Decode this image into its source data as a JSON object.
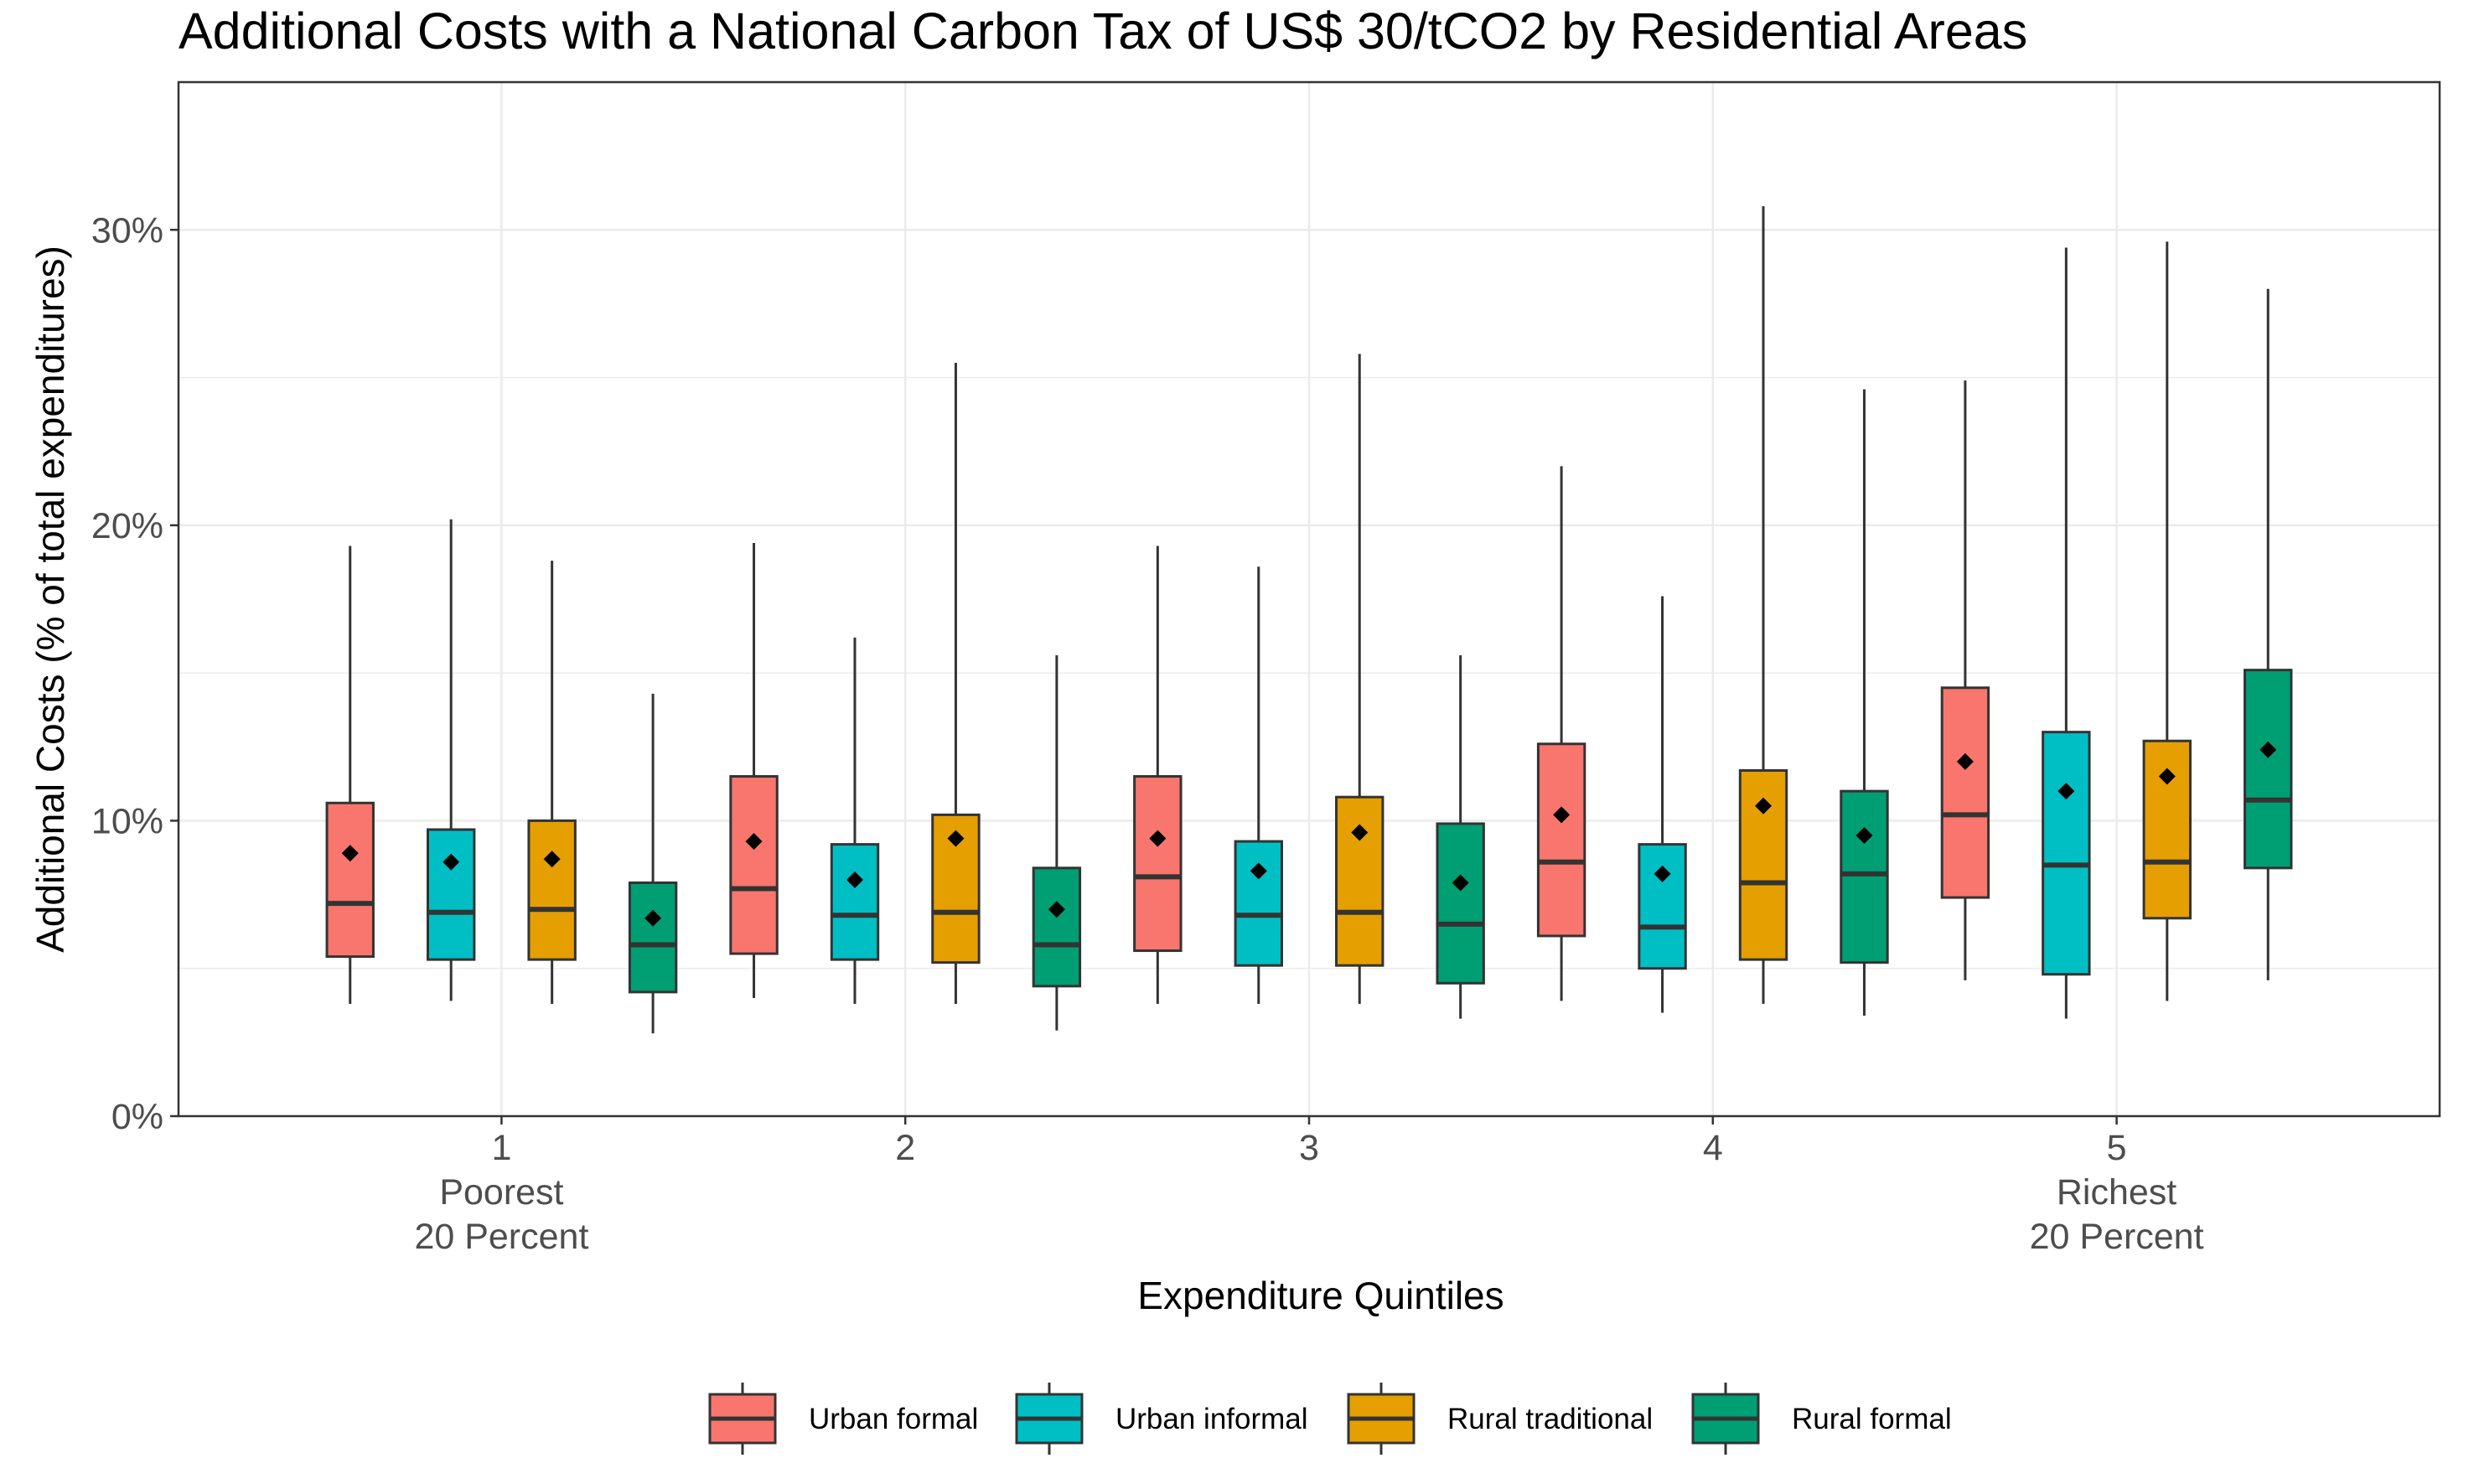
{
  "chart_data": {
    "type": "box",
    "title": "Additional Costs with a National Carbon Tax of US$ 30/tCO2 by Residential Areas",
    "xlabel": "Expenditure Quintiles",
    "ylabel": "Additional Costs (% of total expenditures)",
    "ylim": [
      0,
      35
    ],
    "yticks": [
      0,
      10,
      20,
      30
    ],
    "ytick_labels": [
      "0%",
      "10%",
      "20%",
      "30%"
    ],
    "grid": true,
    "legend_position": "bottom",
    "categories": [
      {
        "label": "1",
        "sublabel1": "Poorest",
        "sublabel2": "20 Percent"
      },
      {
        "label": "2",
        "sublabel1": "",
        "sublabel2": ""
      },
      {
        "label": "3",
        "sublabel1": "",
        "sublabel2": ""
      },
      {
        "label": "4",
        "sublabel1": "",
        "sublabel2": ""
      },
      {
        "label": "5",
        "sublabel1": "Richest",
        "sublabel2": "20 Percent"
      }
    ],
    "series": [
      {
        "name": "Urban formal",
        "color": "#F8766D",
        "boxes": [
          {
            "min": 3.8,
            "q1": 5.4,
            "median": 7.2,
            "q3": 10.6,
            "max": 19.3,
            "mean": 8.9
          },
          {
            "min": 4.0,
            "q1": 5.5,
            "median": 7.7,
            "q3": 11.5,
            "max": 19.4,
            "mean": 9.3
          },
          {
            "min": 3.8,
            "q1": 5.6,
            "median": 8.1,
            "q3": 11.5,
            "max": 19.3,
            "mean": 9.4
          },
          {
            "min": 3.9,
            "q1": 6.1,
            "median": 8.6,
            "q3": 12.6,
            "max": 22.0,
            "mean": 10.2
          },
          {
            "min": 4.6,
            "q1": 7.4,
            "median": 10.2,
            "q3": 14.5,
            "max": 24.9,
            "mean": 12.0
          }
        ]
      },
      {
        "name": "Urban informal",
        "color": "#00BFC4",
        "boxes": [
          {
            "min": 3.9,
            "q1": 5.3,
            "median": 6.9,
            "q3": 9.7,
            "max": 20.2,
            "mean": 8.6
          },
          {
            "min": 3.8,
            "q1": 5.3,
            "median": 6.8,
            "q3": 9.2,
            "max": 16.2,
            "mean": 8.0
          },
          {
            "min": 3.8,
            "q1": 5.1,
            "median": 6.8,
            "q3": 9.3,
            "max": 18.6,
            "mean": 8.3
          },
          {
            "min": 3.5,
            "q1": 5.0,
            "median": 6.4,
            "q3": 9.2,
            "max": 17.6,
            "mean": 8.2
          },
          {
            "min": 3.3,
            "q1": 4.8,
            "median": 8.5,
            "q3": 13.0,
            "max": 29.4,
            "mean": 11.0
          }
        ]
      },
      {
        "name": "Rural traditional",
        "color": "#E69F00",
        "boxes": [
          {
            "min": 3.8,
            "q1": 5.3,
            "median": 7.0,
            "q3": 10.0,
            "max": 18.8,
            "mean": 8.7
          },
          {
            "min": 3.8,
            "q1": 5.2,
            "median": 6.9,
            "q3": 10.2,
            "max": 25.5,
            "mean": 9.4
          },
          {
            "min": 3.8,
            "q1": 5.1,
            "median": 6.9,
            "q3": 10.8,
            "max": 25.8,
            "mean": 9.6
          },
          {
            "min": 3.8,
            "q1": 5.3,
            "median": 7.9,
            "q3": 11.7,
            "max": 30.8,
            "mean": 10.5
          },
          {
            "min": 3.9,
            "q1": 6.7,
            "median": 8.6,
            "q3": 12.7,
            "max": 29.6,
            "mean": 11.5
          }
        ]
      },
      {
        "name": "Rural formal",
        "color": "#009E73",
        "boxes": [
          {
            "min": 2.8,
            "q1": 4.2,
            "median": 5.8,
            "q3": 7.9,
            "max": 14.3,
            "mean": 6.7
          },
          {
            "min": 2.9,
            "q1": 4.4,
            "median": 5.8,
            "q3": 8.4,
            "max": 15.6,
            "mean": 7.0
          },
          {
            "min": 3.3,
            "q1": 4.5,
            "median": 6.5,
            "q3": 9.9,
            "max": 15.6,
            "mean": 7.9
          },
          {
            "min": 3.4,
            "q1": 5.2,
            "median": 8.2,
            "q3": 11.0,
            "max": 24.6,
            "mean": 9.5
          },
          {
            "min": 4.6,
            "q1": 8.4,
            "median": 10.7,
            "q3": 15.1,
            "max": 28.0,
            "mean": 12.4
          }
        ]
      }
    ]
  }
}
